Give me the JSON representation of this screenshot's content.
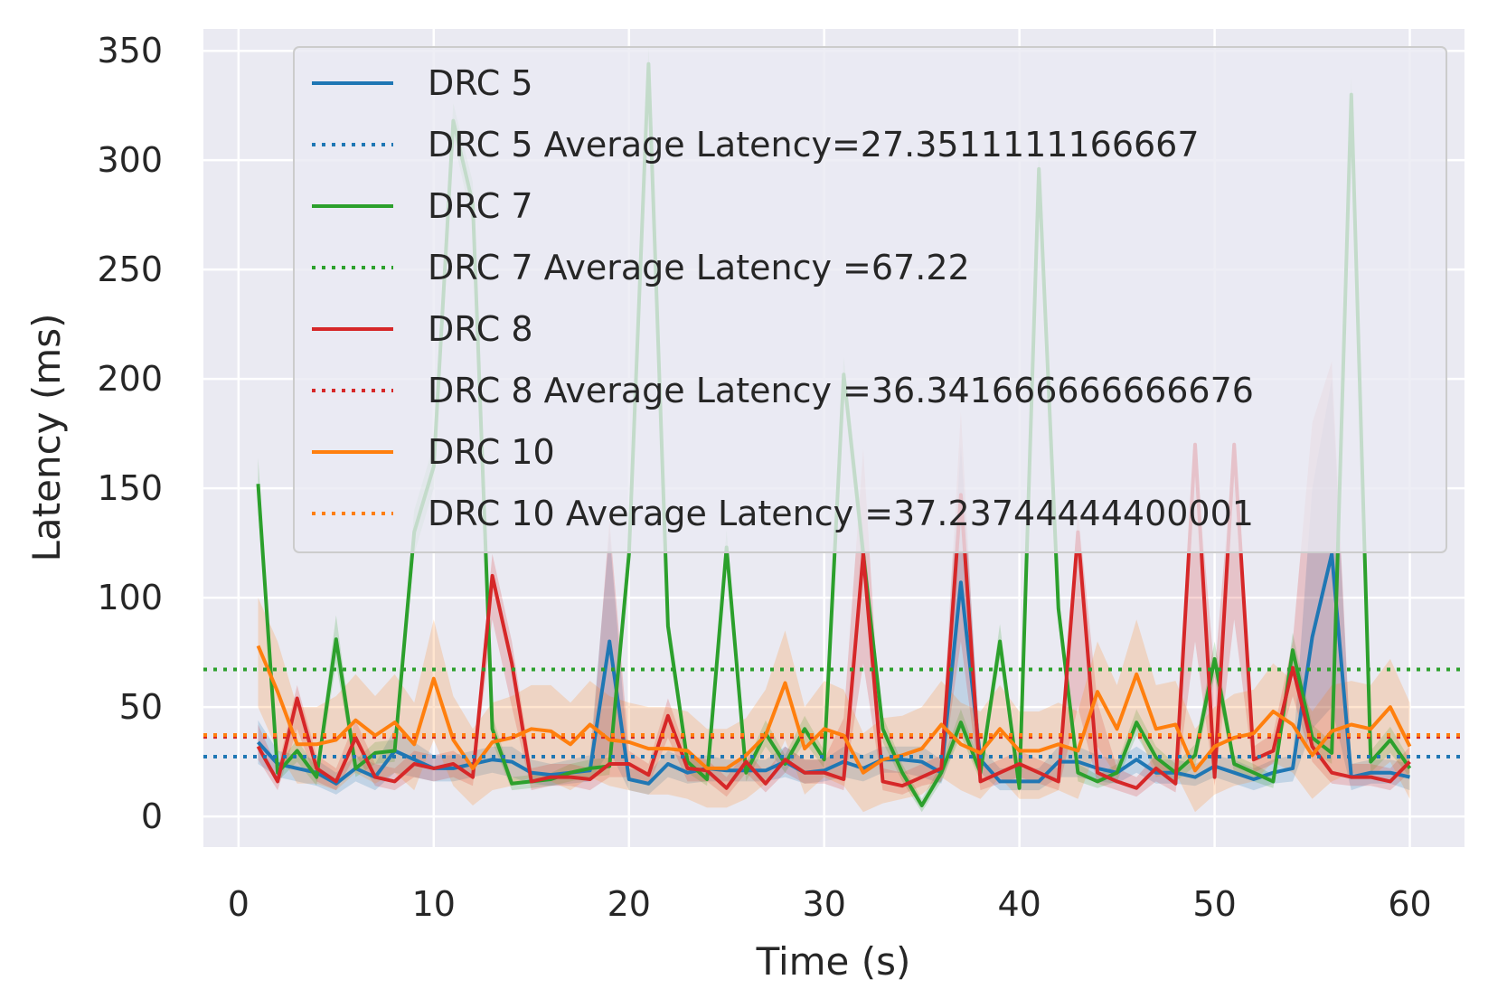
{
  "chart_data": {
    "type": "line",
    "xlabel": "Time (s)",
    "ylabel": "Latency (ms)",
    "xlim": [
      -1.8,
      62.8
    ],
    "ylim": [
      -14,
      360
    ],
    "x_ticks": [
      0,
      10,
      20,
      30,
      40,
      50,
      60
    ],
    "y_ticks": [
      0,
      50,
      100,
      150,
      200,
      250,
      300,
      350
    ],
    "grid": true,
    "legend_position": "top-right",
    "x": [
      1,
      2,
      3,
      4,
      5,
      6,
      7,
      8,
      9,
      10,
      11,
      12,
      13,
      14,
      15,
      16,
      17,
      18,
      19,
      20,
      21,
      22,
      23,
      24,
      25,
      26,
      27,
      28,
      29,
      30,
      31,
      32,
      33,
      34,
      35,
      36,
      37,
      38,
      39,
      40,
      41,
      42,
      43,
      44,
      45,
      46,
      47,
      48,
      49,
      50,
      51,
      52,
      53,
      54,
      55,
      56,
      57,
      58,
      59,
      60
    ],
    "series": [
      {
        "name": "DRC 5",
        "color": "#1f77b4",
        "values": [
          34,
          24,
          22,
          20,
          15,
          22,
          18,
          30,
          26,
          22,
          22,
          24,
          26,
          25,
          20,
          19,
          20,
          21,
          80,
          17,
          15,
          24,
          20,
          22,
          21,
          21,
          21,
          25,
          20,
          21,
          25,
          22,
          26,
          26,
          25,
          20,
          107,
          26,
          16,
          16,
          16,
          25,
          25,
          22,
          20,
          26,
          20,
          20,
          18,
          23,
          20,
          17,
          20,
          22,
          82,
          120,
          18,
          20,
          20,
          18
        ],
        "band": [
          [
            24,
            44
          ],
          [
            18,
            30
          ],
          [
            16,
            28
          ],
          [
            14,
            26
          ],
          [
            10,
            20
          ],
          [
            16,
            28
          ],
          [
            12,
            24
          ],
          [
            20,
            40
          ],
          [
            18,
            34
          ],
          [
            16,
            28
          ],
          [
            16,
            28
          ],
          [
            18,
            30
          ],
          [
            20,
            32
          ],
          [
            18,
            32
          ],
          [
            15,
            26
          ],
          [
            14,
            24
          ],
          [
            15,
            26
          ],
          [
            16,
            28
          ],
          [
            30,
            130
          ],
          [
            12,
            22
          ],
          [
            10,
            20
          ],
          [
            18,
            30
          ],
          [
            15,
            26
          ],
          [
            16,
            28
          ],
          [
            16,
            26
          ],
          [
            16,
            26
          ],
          [
            16,
            26
          ],
          [
            18,
            32
          ],
          [
            15,
            26
          ],
          [
            16,
            26
          ],
          [
            18,
            32
          ],
          [
            16,
            28
          ],
          [
            20,
            32
          ],
          [
            20,
            32
          ],
          [
            18,
            32
          ],
          [
            15,
            26
          ],
          [
            40,
            170
          ],
          [
            20,
            32
          ],
          [
            12,
            22
          ],
          [
            12,
            22
          ],
          [
            12,
            22
          ],
          [
            18,
            32
          ],
          [
            18,
            32
          ],
          [
            16,
            28
          ],
          [
            15,
            26
          ],
          [
            20,
            32
          ],
          [
            15,
            26
          ],
          [
            15,
            26
          ],
          [
            14,
            24
          ],
          [
            18,
            28
          ],
          [
            15,
            26
          ],
          [
            12,
            22
          ],
          [
            15,
            26
          ],
          [
            16,
            28
          ],
          [
            40,
            150
          ],
          [
            50,
            200
          ],
          [
            12,
            24
          ],
          [
            15,
            26
          ],
          [
            15,
            26
          ],
          [
            12,
            24
          ]
        ]
      },
      {
        "name": "DRC 5 Average Latency=27.3511111166667",
        "color": "#1f77b4",
        "average": 27.3511111166667
      },
      {
        "name": "DRC 7",
        "color": "#2ca02c",
        "values": [
          152,
          20,
          30,
          18,
          81,
          22,
          29,
          30,
          130,
          160,
          318,
          280,
          40,
          15,
          16,
          17,
          20,
          22,
          23,
          120,
          344,
          87,
          25,
          17,
          123,
          20,
          38,
          24,
          40,
          26,
          202,
          120,
          40,
          20,
          5,
          20,
          43,
          20,
          80,
          13,
          296,
          95,
          20,
          16,
          20,
          43,
          27,
          20,
          28,
          72,
          24,
          20,
          16,
          76,
          36,
          29,
          330,
          25,
          35,
          22
        ],
        "band": [
          [
            140,
            164
          ],
          [
            16,
            24
          ],
          [
            25,
            35
          ],
          [
            14,
            22
          ],
          [
            70,
            92
          ],
          [
            18,
            26
          ],
          [
            24,
            34
          ],
          [
            25,
            35
          ],
          [
            120,
            140
          ],
          [
            150,
            170
          ],
          [
            310,
            326
          ],
          [
            270,
            290
          ],
          [
            34,
            46
          ],
          [
            12,
            18
          ],
          [
            13,
            19
          ],
          [
            14,
            20
          ],
          [
            16,
            24
          ],
          [
            18,
            26
          ],
          [
            19,
            27
          ],
          [
            110,
            130
          ],
          [
            336,
            352
          ],
          [
            80,
            94
          ],
          [
            20,
            30
          ],
          [
            14,
            20
          ],
          [
            115,
            131
          ],
          [
            16,
            24
          ],
          [
            32,
            44
          ],
          [
            20,
            28
          ],
          [
            34,
            46
          ],
          [
            22,
            30
          ],
          [
            194,
            210
          ],
          [
            110,
            130
          ],
          [
            34,
            46
          ],
          [
            16,
            24
          ],
          [
            2,
            8
          ],
          [
            16,
            24
          ],
          [
            37,
            49
          ],
          [
            16,
            24
          ],
          [
            72,
            88
          ],
          [
            10,
            16
          ],
          [
            288,
            304
          ],
          [
            88,
            102
          ],
          [
            16,
            24
          ],
          [
            13,
            19
          ],
          [
            16,
            24
          ],
          [
            37,
            49
          ],
          [
            22,
            32
          ],
          [
            16,
            24
          ],
          [
            23,
            33
          ],
          [
            64,
            80
          ],
          [
            20,
            28
          ],
          [
            16,
            24
          ],
          [
            13,
            19
          ],
          [
            68,
            84
          ],
          [
            30,
            42
          ],
          [
            24,
            34
          ],
          [
            322,
            338
          ],
          [
            20,
            30
          ],
          [
            29,
            41
          ],
          [
            18,
            26
          ]
        ]
      },
      {
        "name": "DRC 7 Average Latency =67.22",
        "color": "#2ca02c",
        "average": 67.22
      },
      {
        "name": "DRC 8",
        "color": "#d62728",
        "values": [
          32,
          16,
          54,
          22,
          16,
          36,
          18,
          16,
          24,
          22,
          24,
          18,
          110,
          70,
          16,
          18,
          18,
          17,
          24,
          24,
          19,
          46,
          22,
          21,
          13,
          25,
          15,
          26,
          20,
          20,
          17,
          120,
          16,
          14,
          18,
          22,
          147,
          16,
          20,
          24,
          20,
          16,
          130,
          20,
          16,
          13,
          22,
          15,
          170,
          18,
          170,
          26,
          30,
          68,
          32,
          20,
          18,
          18,
          16,
          25
        ],
        "band": [
          [
            26,
            42
          ],
          [
            12,
            22
          ],
          [
            40,
            60
          ],
          [
            16,
            28
          ],
          [
            12,
            22
          ],
          [
            28,
            44
          ],
          [
            14,
            24
          ],
          [
            12,
            22
          ],
          [
            18,
            30
          ],
          [
            16,
            28
          ],
          [
            18,
            30
          ],
          [
            14,
            24
          ],
          [
            90,
            120
          ],
          [
            50,
            80
          ],
          [
            12,
            22
          ],
          [
            14,
            24
          ],
          [
            14,
            24
          ],
          [
            12,
            22
          ],
          [
            18,
            135
          ],
          [
            18,
            30
          ],
          [
            14,
            24
          ],
          [
            36,
            54
          ],
          [
            16,
            28
          ],
          [
            16,
            26
          ],
          [
            9,
            18
          ],
          [
            20,
            30
          ],
          [
            11,
            20
          ],
          [
            20,
            32
          ],
          [
            15,
            26
          ],
          [
            15,
            26
          ],
          [
            12,
            45
          ],
          [
            70,
            168
          ],
          [
            12,
            22
          ],
          [
            10,
            20
          ],
          [
            14,
            24
          ],
          [
            16,
            28
          ],
          [
            80,
            185
          ],
          [
            12,
            22
          ],
          [
            15,
            26
          ],
          [
            18,
            30
          ],
          [
            15,
            26
          ],
          [
            12,
            22
          ],
          [
            50,
            140
          ],
          [
            15,
            52
          ],
          [
            12,
            22
          ],
          [
            9,
            18
          ],
          [
            16,
            28
          ],
          [
            11,
            20
          ],
          [
            80,
            170
          ],
          [
            14,
            65
          ],
          [
            90,
            172
          ],
          [
            20,
            32
          ],
          [
            24,
            38
          ],
          [
            55,
            80
          ],
          [
            25,
            180
          ],
          [
            15,
            208
          ],
          [
            14,
            24
          ],
          [
            14,
            24
          ],
          [
            12,
            22
          ],
          [
            20,
            32
          ]
        ]
      },
      {
        "name": "DRC 8 Average Latency =36.341666666666676",
        "color": "#d62728",
        "average": 36.341666666666676
      },
      {
        "name": "DRC 10",
        "color": "#ff7f0e",
        "values": [
          78,
          57,
          33,
          33,
          35,
          44,
          37,
          43,
          33,
          63,
          35,
          22,
          34,
          36,
          40,
          39,
          33,
          42,
          35,
          34,
          31,
          31,
          30,
          22,
          22,
          28,
          37,
          61,
          31,
          40,
          37,
          20,
          26,
          28,
          31,
          42,
          33,
          29,
          40,
          30,
          30,
          33,
          30,
          57,
          40,
          65,
          40,
          42,
          21,
          32,
          36,
          38,
          48,
          42,
          28,
          39,
          42,
          40,
          50,
          32
        ],
        "band": [
          [
            50,
            100
          ],
          [
            30,
            80
          ],
          [
            15,
            50
          ],
          [
            15,
            50
          ],
          [
            12,
            55
          ],
          [
            20,
            65
          ],
          [
            15,
            55
          ],
          [
            20,
            65
          ],
          [
            12,
            52
          ],
          [
            35,
            90
          ],
          [
            14,
            55
          ],
          [
            5,
            40
          ],
          [
            12,
            52
          ],
          [
            14,
            55
          ],
          [
            18,
            60
          ],
          [
            16,
            60
          ],
          [
            12,
            52
          ],
          [
            18,
            62
          ],
          [
            14,
            55
          ],
          [
            12,
            52
          ],
          [
            10,
            50
          ],
          [
            10,
            50
          ],
          [
            8,
            48
          ],
          [
            4,
            40
          ],
          [
            4,
            40
          ],
          [
            8,
            45
          ],
          [
            15,
            58
          ],
          [
            35,
            85
          ],
          [
            10,
            50
          ],
          [
            18,
            62
          ],
          [
            14,
            58
          ],
          [
            2,
            38
          ],
          [
            6,
            45
          ],
          [
            8,
            46
          ],
          [
            10,
            50
          ],
          [
            18,
            62
          ],
          [
            12,
            52
          ],
          [
            8,
            48
          ],
          [
            18,
            60
          ],
          [
            8,
            48
          ],
          [
            8,
            48
          ],
          [
            12,
            52
          ],
          [
            8,
            48
          ],
          [
            32,
            80
          ],
          [
            18,
            60
          ],
          [
            40,
            90
          ],
          [
            18,
            60
          ],
          [
            20,
            62
          ],
          [
            2,
            40
          ],
          [
            10,
            50
          ],
          [
            14,
            56
          ],
          [
            16,
            58
          ],
          [
            25,
            70
          ],
          [
            20,
            62
          ],
          [
            8,
            48
          ],
          [
            16,
            60
          ],
          [
            20,
            62
          ],
          [
            18,
            60
          ],
          [
            25,
            72
          ],
          [
            8,
            52
          ]
        ]
      },
      {
        "name": "DRC 10 Average Latency =37.23744444400001",
        "color": "#ff7f0e",
        "average": 37.23744444400001
      }
    ]
  }
}
